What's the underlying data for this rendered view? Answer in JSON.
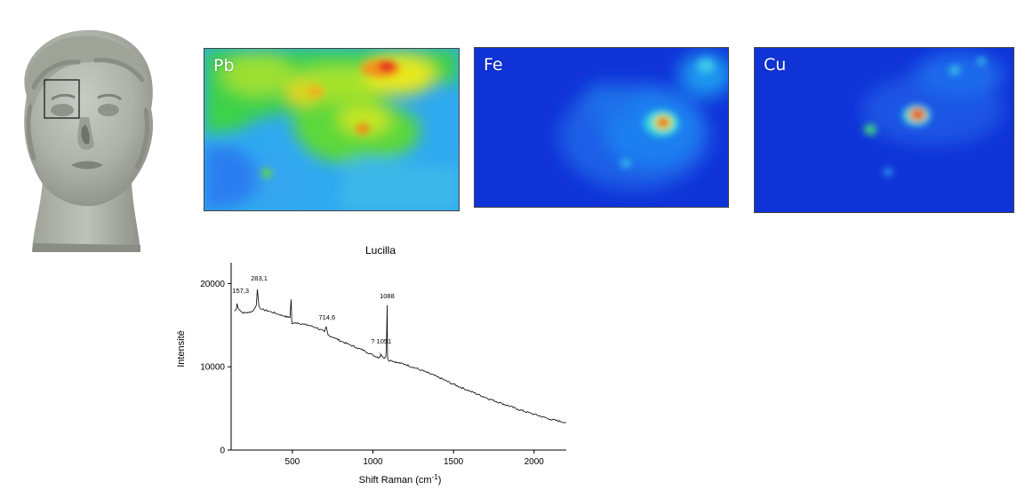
{
  "figure": {
    "maps": [
      {
        "id": "pb",
        "label": "Pb"
      },
      {
        "id": "fe",
        "label": "Fe"
      },
      {
        "id": "cu",
        "label": "Cu"
      }
    ],
    "colors": {
      "map_low": "#1033d8",
      "map_mid": "#2ad84a",
      "map_high": "#e8141c",
      "spectrum_line": "#000000"
    }
  },
  "chart_data": {
    "type": "line",
    "title": "Lucilla",
    "xlabel": "Shift Raman (cm",
    "xlabel_sup": "-1",
    "xlabel_tail": ")",
    "ylabel": "Intensité",
    "xlim": [
      120,
      2200
    ],
    "ylim": [
      0,
      22500
    ],
    "xticks": [
      500,
      1000,
      1500,
      2000
    ],
    "yticks": [
      0,
      10000,
      20000
    ],
    "grid": false,
    "series": [
      {
        "x": [
          140,
          152,
          157,
          165,
          190,
          230,
          260,
          276,
          283,
          292,
          310,
          350,
          400,
          450,
          485,
          492,
          497,
          505,
          530,
          570,
          600,
          650,
          700,
          710,
          715,
          722,
          760,
          800,
          850,
          900,
          950,
          1000,
          1040,
          1051,
          1070,
          1080,
          1085,
          1088,
          1091,
          1098,
          1110,
          1150,
          1200,
          1300,
          1400,
          1500,
          1600,
          1700,
          1800,
          1900,
          2000,
          2100,
          2200
        ],
        "y": [
          16700,
          16900,
          17600,
          17000,
          16500,
          16500,
          16800,
          17400,
          19300,
          17300,
          16900,
          16700,
          16400,
          16100,
          15900,
          18100,
          15200,
          15200,
          15300,
          15100,
          15000,
          14700,
          14200,
          14800,
          14400,
          13800,
          13500,
          13100,
          12700,
          12300,
          11900,
          11400,
          11100,
          11500,
          11000,
          11200,
          13500,
          17400,
          11000,
          10700,
          10800,
          10500,
          10300,
          9600,
          8800,
          7900,
          7100,
          6300,
          5600,
          4900,
          4300,
          3700,
          3300
        ]
      }
    ],
    "annotations": [
      {
        "text": "157,3",
        "x": 157,
        "y": 17600
      },
      {
        "text": "283,1",
        "x": 283,
        "y": 19300
      },
      {
        "text": "714,6",
        "x": 715,
        "y": 14800
      },
      {
        "text": "? 1051",
        "x": 1051,
        "y": 11500
      },
      {
        "text": "1088",
        "x": 1088,
        "y": 17400
      }
    ]
  }
}
